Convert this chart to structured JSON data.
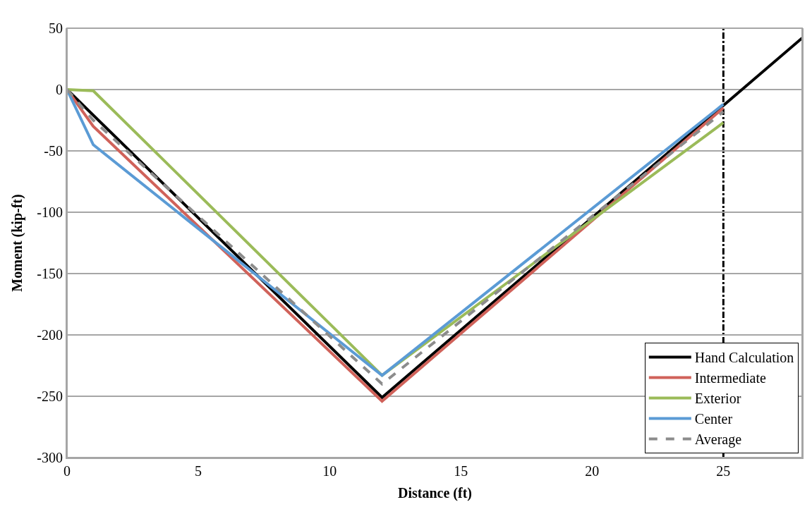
{
  "chart_data": {
    "type": "line",
    "xlabel": "Distance (ft)",
    "ylabel": "Moment (kip-ft)",
    "xlim": [
      0,
      28
    ],
    "xticks": [
      0,
      5,
      10,
      15,
      20,
      25
    ],
    "ylim": [
      -300,
      50
    ],
    "yticks": [
      -300,
      -250,
      -200,
      -150,
      -100,
      -50,
      0,
      50
    ],
    "grid": "y",
    "legend": "bottom right",
    "marker": "none",
    "series": [
      {
        "name": "Hand Calculation",
        "color": "#000000",
        "x": [
          0,
          12,
          28
        ],
        "values": [
          0,
          -251,
          42
        ]
      },
      {
        "name": "Intermediate",
        "color": "#d0625a",
        "x": [
          0,
          1,
          12,
          25
        ],
        "values": [
          0,
          -30,
          -254,
          -15
        ]
      },
      {
        "name": "Exterior",
        "color": "#9bbb59",
        "x": [
          0,
          1,
          12,
          25
        ],
        "values": [
          0,
          -1,
          -233,
          -27
        ]
      },
      {
        "name": "Center",
        "color": "#5b9bd5",
        "x": [
          0,
          1,
          12,
          25
        ],
        "values": [
          0,
          -45,
          -233,
          -12
        ]
      },
      {
        "name": "Average",
        "color": "#8c8c8c",
        "line_style": "dashed",
        "x": [
          0,
          1,
          12,
          25
        ],
        "values": [
          0,
          -25,
          -240,
          -18
        ]
      }
    ],
    "ref_lines": [
      {
        "axis": "x",
        "value": 25,
        "color": "#000000",
        "line_style": "dashdot"
      }
    ]
  }
}
